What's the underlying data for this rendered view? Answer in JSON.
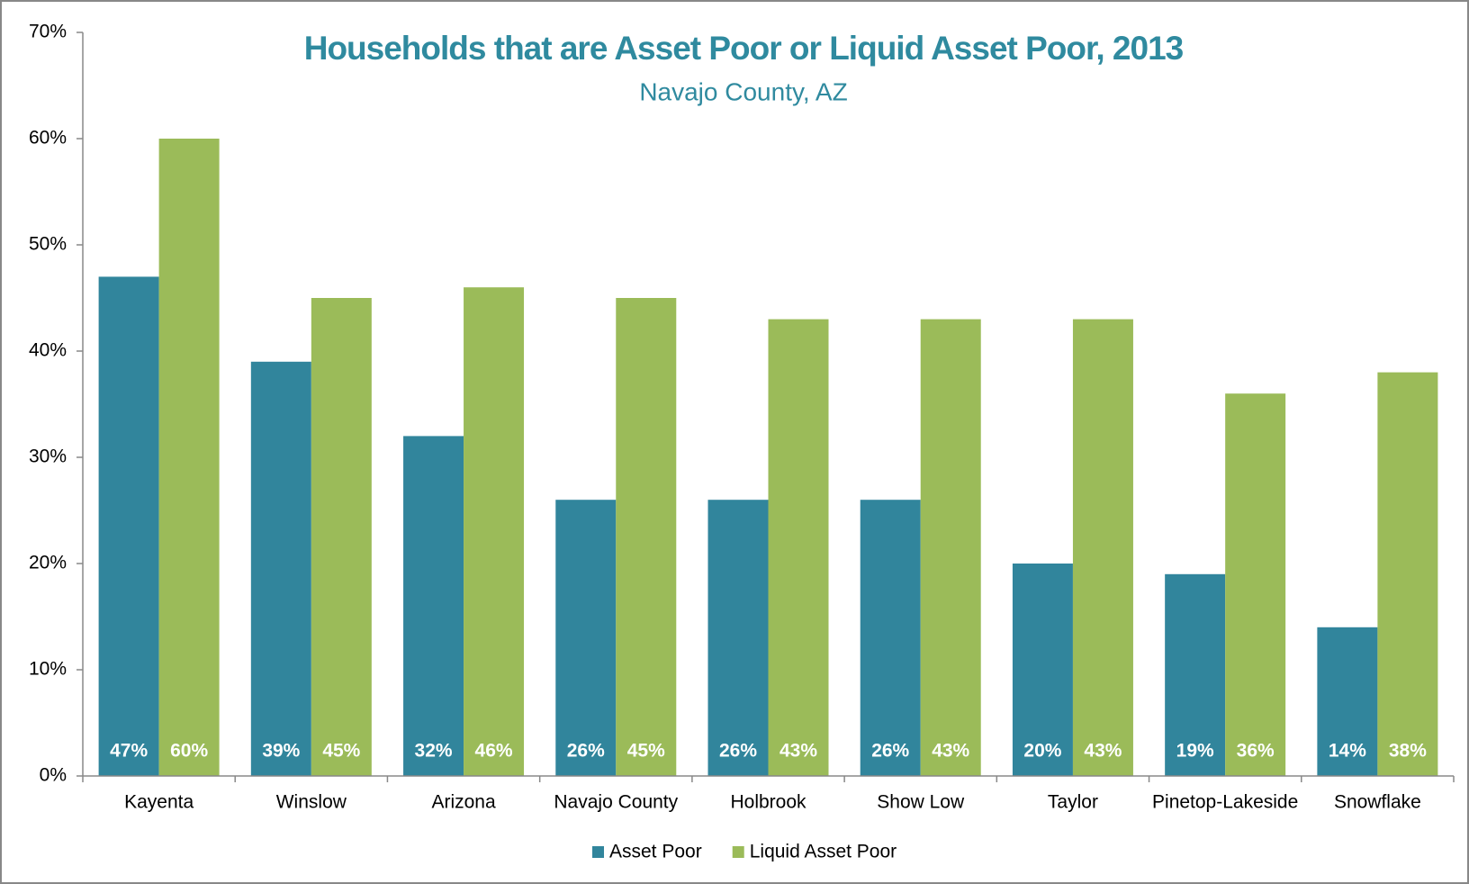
{
  "chart_data": {
    "type": "bar",
    "title": "Households that are Asset Poor or Liquid Asset Poor, 2013",
    "subtitle": "Navajo County, AZ",
    "categories": [
      "Kayenta",
      "Winslow",
      "Arizona",
      "Navajo County",
      "Holbrook",
      "Show Low",
      "Taylor",
      "Pinetop-Lakeside",
      "Snowflake"
    ],
    "series": [
      {
        "name": "Asset Poor",
        "color": "#31859c",
        "values": [
          47,
          39,
          32,
          26,
          26,
          26,
          20,
          19,
          14
        ],
        "value_labels": [
          "47%",
          "39%",
          "32%",
          "26%",
          "26%",
          "26%",
          "20%",
          "19%",
          "14%"
        ]
      },
      {
        "name": "Liquid Asset Poor",
        "color": "#9bbb59",
        "values": [
          60,
          45,
          46,
          45,
          43,
          43,
          43,
          36,
          38
        ],
        "value_labels": [
          "60%",
          "45%",
          "46%",
          "45%",
          "43%",
          "43%",
          "43%",
          "36%",
          "38%"
        ]
      }
    ],
    "ylim": [
      0,
      70
    ],
    "yticks": [
      {
        "value": 0,
        "label": "0%"
      },
      {
        "value": 10,
        "label": "10%"
      },
      {
        "value": 20,
        "label": "20%"
      },
      {
        "value": 30,
        "label": "30%"
      },
      {
        "value": 40,
        "label": "40%"
      },
      {
        "value": 50,
        "label": "50%"
      },
      {
        "value": 60,
        "label": "60%"
      },
      {
        "value": 70,
        "label": "70%"
      }
    ],
    "grid": false,
    "legend": "bottom"
  }
}
